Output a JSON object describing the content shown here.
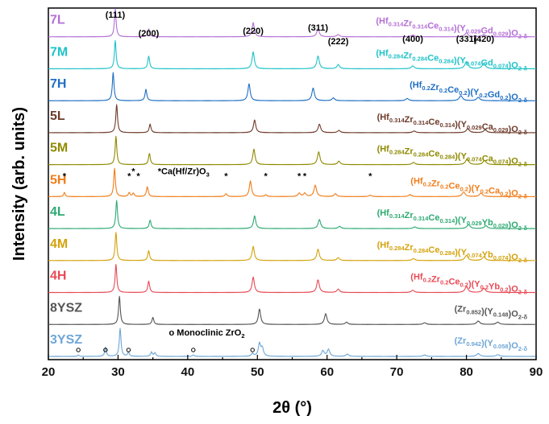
{
  "chart_data": {
    "type": "line",
    "xlabel": "2θ (°)",
    "ylabel": "Intensity (arb. units)",
    "xlim": [
      20,
      90
    ],
    "xticks": [
      20,
      30,
      40,
      50,
      60,
      70,
      80,
      90
    ],
    "yticks_shown": false,
    "series": [
      {
        "name": "7L",
        "formula": "(Hf0.314Zr0.314Ce0.314)(Y0.029Gd0.029)O2-δ",
        "formula_parts": [
          [
            "(Hf",
            ""
          ],
          [
            "0.314",
            "sub"
          ],
          [
            "Zr",
            ""
          ],
          [
            "0.314",
            "sub"
          ],
          [
            "Ce",
            ""
          ],
          [
            "0.314",
            "sub"
          ],
          [
            ")(Y",
            ""
          ],
          [
            "0.029",
            "sub"
          ],
          [
            "Gd",
            ""
          ],
          [
            "0.029",
            "sub"
          ],
          [
            ")O",
            ""
          ],
          [
            "2-δ",
            "sub"
          ]
        ],
        "color": "#b46fd6",
        "peaks": [
          [
            29.6,
            1.0
          ],
          [
            34.4,
            0.28
          ],
          [
            49.4,
            0.5
          ],
          [
            58.7,
            0.28
          ],
          [
            61.6,
            0.08
          ],
          [
            72.3,
            0.06
          ],
          [
            80.0,
            0.14
          ],
          [
            82.5,
            0.08
          ]
        ]
      },
      {
        "name": "7M",
        "formula": "(Hf0.284Zr0.284Ce0.284)(Y0.074Gd0.074)O2-δ",
        "formula_parts": [
          [
            "(Hf",
            ""
          ],
          [
            "0.284",
            "sub"
          ],
          [
            "Zr",
            ""
          ],
          [
            "0.284",
            "sub"
          ],
          [
            "Ce",
            ""
          ],
          [
            "0.284",
            "sub"
          ],
          [
            ")(Y",
            ""
          ],
          [
            "0.074",
            "sub"
          ],
          [
            "Gd",
            ""
          ],
          [
            "0.074",
            "sub"
          ],
          [
            ")O",
            ""
          ],
          [
            "2-δ",
            "sub"
          ]
        ],
        "color": "#1ec3c8",
        "peaks": [
          [
            29.6,
            1.0
          ],
          [
            34.4,
            0.45
          ],
          [
            49.4,
            0.6
          ],
          [
            58.7,
            0.45
          ],
          [
            61.6,
            0.15
          ],
          [
            72.3,
            0.1
          ],
          [
            80.0,
            0.25
          ],
          [
            82.5,
            0.2
          ]
        ]
      },
      {
        "name": "7H",
        "formula": "(Hf0.2Zr0.2Ce0.2)(Y0.2Gd0.2)O2-δ",
        "formula_parts": [
          [
            "(Hf",
            ""
          ],
          [
            "0.2",
            "sub"
          ],
          [
            "Zr",
            ""
          ],
          [
            "0.2",
            "sub"
          ],
          [
            "Ce",
            ""
          ],
          [
            "0.2",
            "sub"
          ],
          [
            ")(Y",
            ""
          ],
          [
            "0.2",
            "sub"
          ],
          [
            "Gd",
            ""
          ],
          [
            "0.2",
            "sub"
          ],
          [
            ")O",
            ""
          ],
          [
            "2-δ",
            "sub"
          ]
        ],
        "color": "#1f6fc5",
        "peaks": [
          [
            29.3,
            1.0
          ],
          [
            34.0,
            0.4
          ],
          [
            48.8,
            0.6
          ],
          [
            58.0,
            0.45
          ],
          [
            60.9,
            0.1
          ],
          [
            71.5,
            0.08
          ],
          [
            79.2,
            0.18
          ],
          [
            81.7,
            0.12
          ]
        ]
      },
      {
        "name": "5L",
        "formula": "(Hf0.314Zr0.314Ce0.314)(Y0.029Ca0.029)O2-δ",
        "formula_parts": [
          [
            "(Hf",
            ""
          ],
          [
            "0.314",
            "sub"
          ],
          [
            "Zr",
            ""
          ],
          [
            "0.314",
            "sub"
          ],
          [
            "Ce",
            ""
          ],
          [
            "0.314",
            "sub"
          ],
          [
            ")(Y",
            ""
          ],
          [
            "0.029",
            "sub"
          ],
          [
            "Ca",
            ""
          ],
          [
            "0.029",
            "sub"
          ],
          [
            ")O",
            ""
          ],
          [
            "2-δ",
            "sub"
          ]
        ],
        "color": "#6e3b2a",
        "peaks": [
          [
            29.8,
            1.0
          ],
          [
            34.6,
            0.3
          ],
          [
            49.6,
            0.45
          ],
          [
            58.9,
            0.3
          ],
          [
            61.7,
            0.08
          ],
          [
            72.5,
            0.06
          ],
          [
            80.2,
            0.14
          ],
          [
            82.7,
            0.1
          ]
        ]
      },
      {
        "name": "5M",
        "formula": "(Hf0.284Zr0.284Ce0.284)(Y0.074Ca0.074)O2-δ",
        "formula_parts": [
          [
            "(Hf",
            ""
          ],
          [
            "0.284",
            "sub"
          ],
          [
            "Zr",
            ""
          ],
          [
            "0.284",
            "sub"
          ],
          [
            "Ce",
            ""
          ],
          [
            "0.284",
            "sub"
          ],
          [
            ")(Y",
            ""
          ],
          [
            "0.074",
            "sub"
          ],
          [
            "Ca",
            ""
          ],
          [
            "0.074",
            "sub"
          ],
          [
            ")O",
            ""
          ],
          [
            "2-δ",
            "sub"
          ]
        ],
        "color": "#8f8a00",
        "peaks": [
          [
            29.7,
            1.0
          ],
          [
            34.5,
            0.4
          ],
          [
            49.5,
            0.55
          ],
          [
            58.8,
            0.45
          ],
          [
            61.7,
            0.12
          ],
          [
            72.4,
            0.08
          ],
          [
            80.1,
            0.2
          ],
          [
            82.6,
            0.15
          ]
        ]
      },
      {
        "name": "5H",
        "formula": "(Hf0.2Zr0.2Ce0.2)(Y0.2Ca0.2)O2-δ",
        "formula_parts": [
          [
            "(Hf",
            ""
          ],
          [
            "0.2",
            "sub"
          ],
          [
            "Zr",
            ""
          ],
          [
            "0.2",
            "sub"
          ],
          [
            "Ce",
            ""
          ],
          [
            "0.2",
            "sub"
          ],
          [
            ")(Y",
            ""
          ],
          [
            "0.2",
            "sub"
          ],
          [
            "Ca",
            ""
          ],
          [
            "0.2",
            "sub"
          ],
          [
            ")O",
            ""
          ],
          [
            "2-δ",
            "sub"
          ]
        ],
        "color": "#f07d1a",
        "peaks": [
          [
            22.3,
            0.15
          ],
          [
            29.5,
            1.0
          ],
          [
            31.6,
            0.14
          ],
          [
            32.2,
            0.12
          ],
          [
            34.2,
            0.35
          ],
          [
            45.5,
            0.1
          ],
          [
            49.0,
            0.55
          ],
          [
            51.2,
            0.06
          ],
          [
            56.0,
            0.12
          ],
          [
            56.8,
            0.12
          ],
          [
            58.3,
            0.4
          ],
          [
            61.2,
            0.1
          ],
          [
            66.2,
            0.05
          ],
          [
            71.9,
            0.07
          ],
          [
            79.6,
            0.16
          ],
          [
            82.1,
            0.12
          ]
        ]
      },
      {
        "name": "4L",
        "formula": "(Hf0.314Zr0.314Ce0.314)(Y0.029Yb0.029)O2-δ",
        "formula_parts": [
          [
            "(Hf",
            ""
          ],
          [
            "0.314",
            "sub"
          ],
          [
            "Zr",
            ""
          ],
          [
            "0.314",
            "sub"
          ],
          [
            "Ce",
            ""
          ],
          [
            "0.314",
            "sub"
          ],
          [
            ")(Y",
            ""
          ],
          [
            "0.029",
            "sub"
          ],
          [
            "Yb",
            ""
          ],
          [
            "0.029",
            "sub"
          ],
          [
            ")O",
            ""
          ],
          [
            "2-δ",
            "sub"
          ]
        ],
        "color": "#2eaa72",
        "peaks": [
          [
            29.8,
            1.0
          ],
          [
            34.6,
            0.3
          ],
          [
            49.6,
            0.45
          ],
          [
            58.9,
            0.32
          ],
          [
            61.8,
            0.08
          ],
          [
            72.6,
            0.06
          ],
          [
            80.3,
            0.14
          ],
          [
            82.8,
            0.1
          ]
        ]
      },
      {
        "name": "4M",
        "formula": "(Hf0.284Zr0.284Ce0.284)(Y0.074Yb0.074)O2-δ",
        "formula_parts": [
          [
            "(Hf",
            ""
          ],
          [
            "0.284",
            "sub"
          ],
          [
            "Zr",
            ""
          ],
          [
            "0.284",
            "sub"
          ],
          [
            "Ce",
            ""
          ],
          [
            "0.284",
            "sub"
          ],
          [
            ")(Y",
            ""
          ],
          [
            "0.074",
            "sub"
          ],
          [
            "Yb",
            ""
          ],
          [
            "0.074",
            "sub"
          ],
          [
            ")O",
            ""
          ],
          [
            "2-δ",
            "sub"
          ]
        ],
        "color": "#d4a20c",
        "peaks": [
          [
            29.7,
            1.0
          ],
          [
            34.4,
            0.35
          ],
          [
            49.4,
            0.5
          ],
          [
            58.7,
            0.4
          ],
          [
            61.6,
            0.1
          ],
          [
            72.4,
            0.07
          ],
          [
            80.0,
            0.18
          ],
          [
            82.5,
            0.13
          ]
        ]
      },
      {
        "name": "4H",
        "formula": "(Hf0.2Zr0.2Ce0.2)(Y0.2Yb0.2)O2-δ",
        "formula_parts": [
          [
            "(Hf",
            ""
          ],
          [
            "0.2",
            "sub"
          ],
          [
            "Zr",
            ""
          ],
          [
            "0.2",
            "sub"
          ],
          [
            "Ce",
            ""
          ],
          [
            "0.2",
            "sub"
          ],
          [
            ")(Y",
            ""
          ],
          [
            "0.2",
            "sub"
          ],
          [
            "Yb",
            ""
          ],
          [
            "0.2",
            "sub"
          ],
          [
            ")O",
            ""
          ],
          [
            "2-δ",
            "sub"
          ]
        ],
        "color": "#e84a55",
        "peaks": [
          [
            29.7,
            1.0
          ],
          [
            34.4,
            0.4
          ],
          [
            49.4,
            0.55
          ],
          [
            58.7,
            0.45
          ],
          [
            61.6,
            0.12
          ],
          [
            72.3,
            0.08
          ],
          [
            80.0,
            0.2
          ],
          [
            82.5,
            0.15
          ]
        ]
      },
      {
        "name": "8YSZ",
        "formula": "(Zr0.852)(Y0.148)O2-δ",
        "formula_parts": [
          [
            "(Zr",
            ""
          ],
          [
            "0.852",
            "sub"
          ],
          [
            ")(Y",
            ""
          ],
          [
            "0.148",
            "sub"
          ],
          [
            ")O",
            ""
          ],
          [
            "2-δ",
            "sub"
          ]
        ],
        "color": "#555555",
        "peaks": [
          [
            30.2,
            1.0
          ],
          [
            35.0,
            0.25
          ],
          [
            50.3,
            0.55
          ],
          [
            59.8,
            0.38
          ],
          [
            62.8,
            0.08
          ],
          [
            74.0,
            0.06
          ],
          [
            81.7,
            0.12
          ],
          [
            84.5,
            0.08
          ]
        ]
      },
      {
        "name": "3YSZ",
        "formula": "(Zr0.942)(Y0.058)O2-δ",
        "formula_parts": [
          [
            "(Zr",
            ""
          ],
          [
            "0.942",
            "sub"
          ],
          [
            ")(Y",
            ""
          ],
          [
            "0.058",
            "sub"
          ],
          [
            ")O",
            ""
          ],
          [
            "2-δ",
            "sub"
          ]
        ],
        "color": "#6ea6d6",
        "peaks": [
          [
            24.3,
            0.05
          ],
          [
            28.2,
            0.32
          ],
          [
            30.3,
            1.0
          ],
          [
            31.5,
            0.14
          ],
          [
            34.8,
            0.15
          ],
          [
            35.3,
            0.12
          ],
          [
            40.8,
            0.05
          ],
          [
            49.3,
            0.1
          ],
          [
            50.3,
            0.45
          ],
          [
            50.7,
            0.28
          ],
          [
            59.4,
            0.2
          ],
          [
            60.2,
            0.25
          ],
          [
            62.9,
            0.08
          ],
          [
            74.0,
            0.05
          ],
          [
            81.7,
            0.1
          ],
          [
            84.5,
            0.06
          ]
        ]
      }
    ],
    "hkl_labels": [
      {
        "text": "(111)",
        "x": 29.6
      },
      {
        "text": "(200)",
        "x": 34.4
      },
      {
        "text": "(220)",
        "x": 49.4
      },
      {
        "text": "(311)",
        "x": 58.7
      },
      {
        "text": "(222)",
        "x": 61.6
      },
      {
        "text": "(400)",
        "x": 72.3
      },
      {
        "text": "(331)",
        "x": 80.0
      },
      {
        "text": "(420)",
        "x": 82.5
      }
    ],
    "annotations": {
      "impurity_label": "Ca(Hf/Zr)O3",
      "impurity_marker": "*",
      "impurity_positions": [
        22.3,
        31.6,
        32.2,
        32.9,
        45.5,
        51.2,
        56.0,
        56.8,
        66.2
      ],
      "monoclinic_label": "Monoclinic ZrO2",
      "monoclinic_marker": "o",
      "monoclinic_positions": [
        24.3,
        28.2,
        31.5,
        40.8,
        49.3
      ]
    }
  }
}
